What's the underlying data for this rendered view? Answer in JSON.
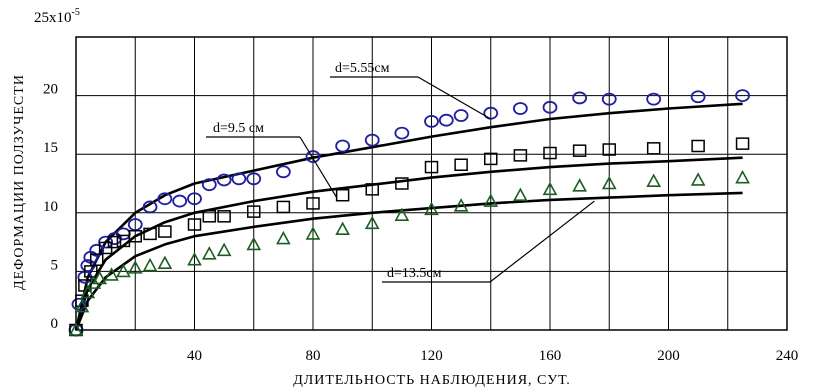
{
  "chart_data": {
    "type": "scatter",
    "xlabel": "ДЛИТЕЛЬНОСТЬ  НАБЛЮДЕНИЯ, СУТ.",
    "ylabel": "ДЕФОРМАЦИИ  ПОЛЗУЧЕСТИ",
    "y_scale_label": "25x10",
    "y_scale_exponent": "-5",
    "xlim": [
      0,
      240
    ],
    "ylim": [
      0,
      25
    ],
    "x_ticks": [
      40,
      80,
      120,
      160,
      200,
      240
    ],
    "x_tick_labels": [
      "40",
      "80",
      "120",
      "160",
      "200",
      "240"
    ],
    "y_ticks": [
      0,
      5,
      10,
      15,
      20
    ],
    "y_tick_labels": [
      "0",
      "5",
      "10",
      "15",
      "20"
    ],
    "x_grid": [
      0,
      20,
      40,
      60,
      80,
      100,
      120,
      140,
      160,
      180,
      200,
      220
    ],
    "y_grid": [
      0,
      5,
      10,
      15,
      20,
      25
    ],
    "grid": true,
    "series": [
      {
        "marker": "circle",
        "color": "#1f1fa0",
        "points": [
          [
            0,
            0
          ],
          [
            1,
            2.2
          ],
          [
            3,
            4.5
          ],
          [
            4,
            5.5
          ],
          [
            5,
            6.2
          ],
          [
            7,
            6.8
          ],
          [
            10,
            7.5
          ],
          [
            13,
            7.8
          ],
          [
            16,
            8.2
          ],
          [
            20,
            9.0
          ],
          [
            25,
            10.5
          ],
          [
            30,
            11.2
          ],
          [
            35,
            11.0
          ],
          [
            40,
            11.2
          ],
          [
            45,
            12.4
          ],
          [
            50,
            12.8
          ],
          [
            55,
            12.9
          ],
          [
            60,
            12.9
          ],
          [
            70,
            13.5
          ],
          [
            80,
            14.8
          ],
          [
            90,
            15.7
          ],
          [
            100,
            16.2
          ],
          [
            110,
            16.8
          ],
          [
            120,
            17.8
          ],
          [
            125,
            17.9
          ],
          [
            130,
            18.3
          ],
          [
            140,
            18.5
          ],
          [
            150,
            18.9
          ],
          [
            160,
            19.0
          ],
          [
            170,
            19.8
          ],
          [
            180,
            19.7
          ],
          [
            195,
            19.7
          ],
          [
            210,
            19.9
          ],
          [
            225,
            20.0
          ]
        ]
      },
      {
        "marker": "square",
        "color": "#000000",
        "points": [
          [
            0,
            0
          ],
          [
            2,
            2.5
          ],
          [
            3,
            3.8
          ],
          [
            5,
            5.0
          ],
          [
            7,
            6.0
          ],
          [
            10,
            7.0
          ],
          [
            13,
            7.5
          ],
          [
            16,
            7.6
          ],
          [
            20,
            8.0
          ],
          [
            25,
            8.2
          ],
          [
            30,
            8.4
          ],
          [
            40,
            9.0
          ],
          [
            45,
            9.7
          ],
          [
            50,
            9.7
          ],
          [
            60,
            10.1
          ],
          [
            70,
            10.5
          ],
          [
            80,
            10.8
          ],
          [
            90,
            11.5
          ],
          [
            100,
            12.0
          ],
          [
            110,
            12.5
          ],
          [
            120,
            13.9
          ],
          [
            130,
            14.1
          ],
          [
            140,
            14.6
          ],
          [
            150,
            14.9
          ],
          [
            160,
            15.1
          ],
          [
            170,
            15.3
          ],
          [
            180,
            15.4
          ],
          [
            195,
            15.5
          ],
          [
            210,
            15.7
          ],
          [
            225,
            15.9
          ]
        ]
      },
      {
        "marker": "triangle",
        "color": "#1b5e20",
        "points": [
          [
            0,
            0
          ],
          [
            2,
            2.0
          ],
          [
            4,
            3.2
          ],
          [
            6,
            4.0
          ],
          [
            8,
            4.4
          ],
          [
            12,
            4.7
          ],
          [
            16,
            5.0
          ],
          [
            20,
            5.3
          ],
          [
            25,
            5.5
          ],
          [
            30,
            5.7
          ],
          [
            40,
            6.0
          ],
          [
            45,
            6.5
          ],
          [
            50,
            6.8
          ],
          [
            60,
            7.3
          ],
          [
            70,
            7.8
          ],
          [
            80,
            8.2
          ],
          [
            90,
            8.6
          ],
          [
            100,
            9.1
          ],
          [
            110,
            9.8
          ],
          [
            120,
            10.3
          ],
          [
            130,
            10.6
          ],
          [
            140,
            11.0
          ],
          [
            150,
            11.5
          ],
          [
            160,
            12.0
          ],
          [
            170,
            12.3
          ],
          [
            180,
            12.5
          ],
          [
            195,
            12.7
          ],
          [
            210,
            12.8
          ],
          [
            225,
            13.0
          ]
        ]
      }
    ],
    "curves": [
      {
        "points": [
          [
            0,
            0
          ],
          [
            4,
            4.5
          ],
          [
            10,
            7.5
          ],
          [
            20,
            10
          ],
          [
            30,
            11.5
          ],
          [
            40,
            12.5
          ],
          [
            60,
            13.6
          ],
          [
            80,
            14.7
          ],
          [
            100,
            15.6
          ],
          [
            120,
            16.5
          ],
          [
            140,
            17.3
          ],
          [
            160,
            18.0
          ],
          [
            180,
            18.5
          ],
          [
            200,
            18.9
          ],
          [
            225,
            19.3
          ]
        ]
      },
      {
        "points": [
          [
            0,
            0
          ],
          [
            4,
            3.5
          ],
          [
            10,
            6.0
          ],
          [
            20,
            8.0
          ],
          [
            30,
            9.2
          ],
          [
            40,
            10.0
          ],
          [
            60,
            11.0
          ],
          [
            80,
            11.8
          ],
          [
            100,
            12.4
          ],
          [
            120,
            13.0
          ],
          [
            140,
            13.5
          ],
          [
            160,
            13.9
          ],
          [
            180,
            14.2
          ],
          [
            200,
            14.4
          ],
          [
            225,
            14.7
          ]
        ]
      },
      {
        "points": [
          [
            0,
            0
          ],
          [
            4,
            2.5
          ],
          [
            10,
            4.5
          ],
          [
            20,
            6.3
          ],
          [
            30,
            7.3
          ],
          [
            40,
            8.0
          ],
          [
            60,
            8.8
          ],
          [
            80,
            9.5
          ],
          [
            100,
            10.0
          ],
          [
            120,
            10.4
          ],
          [
            140,
            10.8
          ],
          [
            160,
            11.1
          ],
          [
            180,
            11.3
          ],
          [
            200,
            11.5
          ],
          [
            225,
            11.7
          ]
        ]
      }
    ],
    "annotations": [
      {
        "label": "d=5.55см",
        "anchor_x": 140,
        "anchor_y": 18.0
      },
      {
        "label": "d=9.5  см",
        "anchor_x": 88,
        "anchor_y": 11.3
      },
      {
        "label": "d=13.5см",
        "anchor_x": 175,
        "anchor_y": 11.0
      }
    ]
  }
}
